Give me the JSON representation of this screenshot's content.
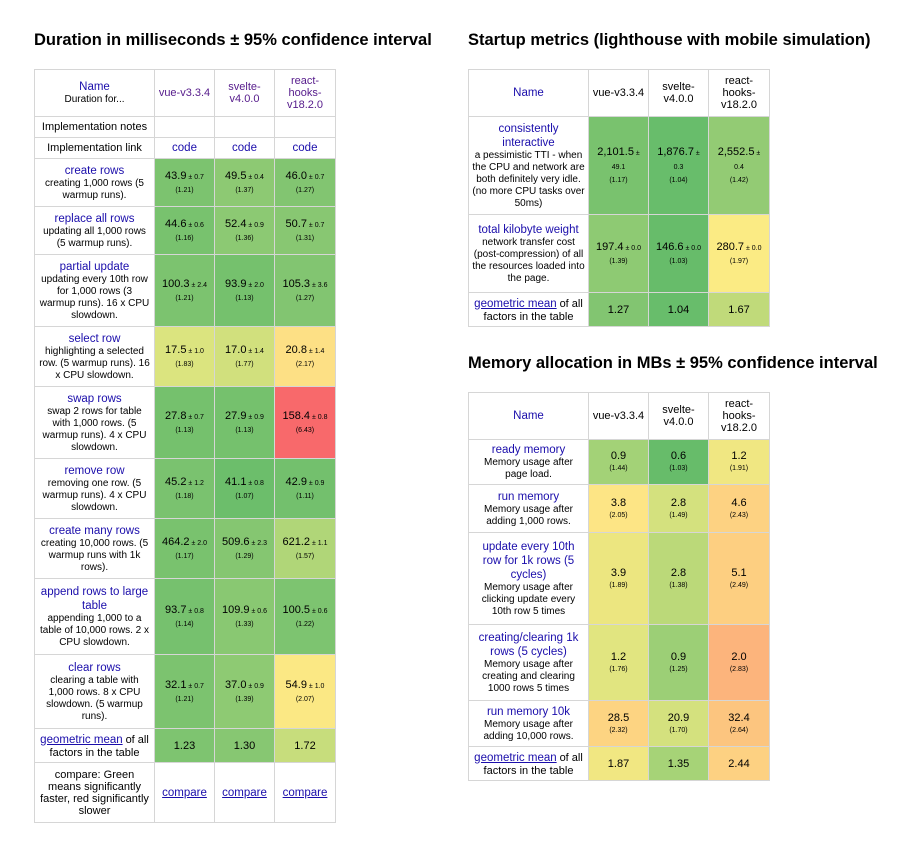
{
  "duration": {
    "title": "Duration in milliseconds ± 95% confidence interval",
    "header": {
      "name_label": "Name",
      "name_sub": "Duration for..."
    },
    "frameworks": [
      "vue-v3.3.4",
      "svelte-v4.0.0",
      "react-hooks-v18.2.0"
    ],
    "notes_label": "Implementation notes",
    "link_label": "Implementation link",
    "link_text": "code",
    "rows": [
      {
        "name": "create rows",
        "desc": "creating 1,000 rows (5 warmup runs).",
        "cells": [
          {
            "mean": "43.9",
            "ci": "± 0.7",
            "factor": "(1.21)",
            "color": "#7cc36f"
          },
          {
            "mean": "49.5",
            "ci": "± 0.4",
            "factor": "(1.37)",
            "color": "#8dc973"
          },
          {
            "mean": "46.0",
            "ci": "± 0.7",
            "factor": "(1.27)",
            "color": "#82c571"
          }
        ]
      },
      {
        "name": "replace all rows",
        "desc": "updating all 1,000 rows (5 warmup runs).",
        "cells": [
          {
            "mean": "44.6",
            "ci": "± 0.6",
            "factor": "(1.16)",
            "color": "#78c26e"
          },
          {
            "mean": "52.4",
            "ci": "± 0.9",
            "factor": "(1.36)",
            "color": "#8cc973"
          },
          {
            "mean": "50.7",
            "ci": "± 0.7",
            "factor": "(1.31)",
            "color": "#88c772"
          }
        ]
      },
      {
        "name": "partial update",
        "desc": "updating every 10th row for 1,000 rows (3 warmup runs). 16 x CPU slowdown.",
        "cells": [
          {
            "mean": "100.3",
            "ci": "± 2.4",
            "factor": "(1.21)",
            "color": "#7cc36f"
          },
          {
            "mean": "93.9",
            "ci": "± 2.0",
            "factor": "(1.13)",
            "color": "#75c16d"
          },
          {
            "mean": "105.3",
            "ci": "± 3.6",
            "factor": "(1.27)",
            "color": "#82c571"
          }
        ]
      },
      {
        "name": "select row",
        "desc": "highlighting a selected row. (5 warmup runs). 16 x CPU slowdown.",
        "cells": [
          {
            "mean": "17.5",
            "ci": "± 1.0",
            "factor": "(1.83)",
            "color": "#dbe47f"
          },
          {
            "mean": "17.0",
            "ci": "± 1.4",
            "factor": "(1.77)",
            "color": "#d1e07d"
          },
          {
            "mean": "20.8",
            "ci": "± 1.4",
            "factor": "(2.17)",
            "color": "#fde085"
          }
        ]
      },
      {
        "name": "swap rows",
        "desc": "swap 2 rows for table with 1,000 rows. (5 warmup runs). 4 x CPU slowdown.",
        "cells": [
          {
            "mean": "27.8",
            "ci": "± 0.7",
            "factor": "(1.13)",
            "color": "#75c16d"
          },
          {
            "mean": "27.9",
            "ci": "± 0.9",
            "factor": "(1.13)",
            "color": "#75c16d"
          },
          {
            "mean": "158.4",
            "ci": "± 0.8",
            "factor": "(6.43)",
            "color": "#f8696b"
          }
        ]
      },
      {
        "name": "remove row",
        "desc": "removing one row. (5 warmup runs). 4 x CPU slowdown.",
        "cells": [
          {
            "mean": "45.2",
            "ci": "± 1.2",
            "factor": "(1.18)",
            "color": "#7ac26f"
          },
          {
            "mean": "41.1",
            "ci": "± 0.8",
            "factor": "(1.07)",
            "color": "#6cbe6b"
          },
          {
            "mean": "42.9",
            "ci": "± 0.9",
            "factor": "(1.11)",
            "color": "#73c06d"
          }
        ]
      },
      {
        "name": "create many rows",
        "desc": "creating 10,000 rows. (5 warmup runs with 1k rows).",
        "cells": [
          {
            "mean": "464.2",
            "ci": "± 2.0",
            "factor": "(1.17)",
            "color": "#79c26e"
          },
          {
            "mean": "509.6",
            "ci": "± 2.3",
            "factor": "(1.29)",
            "color": "#85c671"
          },
          {
            "mean": "621.2",
            "ci": "± 1.1",
            "factor": "(1.57)",
            "color": "#b0d678"
          }
        ]
      },
      {
        "name": "append rows to large table",
        "desc": "appending 1,000 to a table of 10,000 rows. 2 x CPU slowdown.",
        "cells": [
          {
            "mean": "93.7",
            "ci": "± 0.8",
            "factor": "(1.14)",
            "color": "#76c16e"
          },
          {
            "mean": "109.9",
            "ci": "± 0.6",
            "factor": "(1.33)",
            "color": "#89c872"
          },
          {
            "mean": "100.5",
            "ci": "± 0.6",
            "factor": "(1.22)",
            "color": "#7dc470"
          }
        ]
      },
      {
        "name": "clear rows",
        "desc": "clearing a table with 1,000 rows. 8 x CPU slowdown. (5 warmup runs).",
        "cells": [
          {
            "mean": "32.1",
            "ci": "± 0.7",
            "factor": "(1.21)",
            "color": "#7cc36f"
          },
          {
            "mean": "37.0",
            "ci": "± 0.9",
            "factor": "(1.39)",
            "color": "#8eca73"
          },
          {
            "mean": "54.9",
            "ci": "± 1.0",
            "factor": "(2.07)",
            "color": "#fbe884"
          }
        ]
      }
    ],
    "geo": {
      "name": "geometric mean",
      "suffix": "of all factors in the table",
      "values": [
        {
          "v": "1.23",
          "color": "#7ec470"
        },
        {
          "v": "1.30",
          "color": "#87c772"
        },
        {
          "v": "1.72",
          "color": "#c7dd7c"
        }
      ]
    },
    "compare": {
      "text": "compare: Green means significantly faster, red significantly slower",
      "link": "compare"
    }
  },
  "startup": {
    "title": "Startup metrics (lighthouse with mobile simulation)",
    "name_label": "Name",
    "frameworks": [
      "vue-v3.3.4",
      "svelte-v4.0.0",
      "react-hooks-v18.2.0"
    ],
    "rows": [
      {
        "name": "consistently interactive",
        "desc": "a pessimistic TTI - when the CPU and network are both definitely very idle. (no more CPU tasks over 50ms)",
        "cells": [
          {
            "mean": "2,101.5",
            "ci": "± 49.1",
            "factor": "(1.17)",
            "color": "#79c26e"
          },
          {
            "mean": "1,876.7",
            "ci": "± 0.3",
            "factor": "(1.04)",
            "color": "#68bd6b"
          },
          {
            "mean": "2,552.5",
            "ci": "± 0.4",
            "factor": "(1.42)",
            "color": "#93cb74"
          }
        ]
      },
      {
        "name": "total kilobyte weight",
        "desc": "network transfer cost (post-compression) of all the resources loaded into the page.",
        "cells": [
          {
            "mean": "197.4",
            "ci": "± 0.0",
            "factor": "(1.39)",
            "color": "#8eca73"
          },
          {
            "mean": "146.6",
            "ci": "± 0.0",
            "factor": "(1.03)",
            "color": "#67bc6a"
          },
          {
            "mean": "280.7",
            "ci": "± 0.0",
            "factor": "(1.97)",
            "color": "#fbeb84"
          }
        ]
      }
    ],
    "geo": {
      "name": "geometric mean",
      "suffix": "of all factors in the table",
      "values": [
        {
          "v": "1.27",
          "color": "#82c571"
        },
        {
          "v": "1.04",
          "color": "#68bd6b"
        },
        {
          "v": "1.67",
          "color": "#c0da7a"
        }
      ]
    }
  },
  "memory": {
    "title": "Memory allocation in MBs ± 95% confidence interval",
    "name_label": "Name",
    "frameworks": [
      "vue-v3.3.4",
      "svelte-v4.0.0",
      "react-hooks-v18.2.0"
    ],
    "rows": [
      {
        "name": "ready memory",
        "desc": "Memory usage after page load.",
        "cells": [
          {
            "mean": "0.9",
            "factor": "(1.44)",
            "color": "#a3d277"
          },
          {
            "mean": "0.6",
            "factor": "(1.03)",
            "color": "#67bc6a"
          },
          {
            "mean": "1.2",
            "factor": "(1.91)",
            "color": "#f0e782"
          }
        ]
      },
      {
        "name": "run memory",
        "desc": "Memory usage after adding 1,000 rows.",
        "cells": [
          {
            "mean": "3.8",
            "factor": "(2.05)",
            "color": "#fde585"
          },
          {
            "mean": "2.8",
            "factor": "(1.49)",
            "color": "#d4e17e"
          },
          {
            "mean": "4.6",
            "factor": "(2.43)",
            "color": "#fdd282"
          }
        ]
      },
      {
        "name": "update every 10th row for 1k rows (5 cycles)",
        "desc": "Memory usage after clicking update every 10th row 5 times",
        "cells": [
          {
            "mean": "3.9",
            "factor": "(1.89)",
            "color": "#ece680"
          },
          {
            "mean": "2.8",
            "factor": "(1.38)",
            "color": "#bbd979"
          },
          {
            "mean": "5.1",
            "factor": "(2.49)",
            "color": "#fdcf81"
          }
        ]
      },
      {
        "name": "creating/clearing 1k rows (5 cycles)",
        "desc": "Memory usage after creating and clearing 1000 rows 5 times",
        "cells": [
          {
            "mean": "1.2",
            "factor": "(1.76)",
            "color": "#e1e580"
          },
          {
            "mean": "0.9",
            "factor": "(1.25)",
            "color": "#9ccf76"
          },
          {
            "mean": "2.0",
            "factor": "(2.83)",
            "color": "#fcb47c"
          }
        ]
      },
      {
        "name": "run memory 10k",
        "desc": "Memory usage after adding 10,000 rows.",
        "cells": [
          {
            "mean": "28.5",
            "factor": "(2.32)",
            "color": "#fdd482"
          },
          {
            "mean": "20.9",
            "factor": "(1.70)",
            "color": "#d4e17e"
          },
          {
            "mean": "32.4",
            "factor": "(2.64)",
            "color": "#fcc57f"
          }
        ]
      }
    ],
    "geo": {
      "name": "geometric mean",
      "suffix": "of all factors in the table",
      "values": [
        {
          "v": "1.87",
          "color": "#f1e782"
        },
        {
          "v": "1.35",
          "color": "#a6d377"
        },
        {
          "v": "2.44",
          "color": "#fdd182"
        }
      ]
    }
  }
}
